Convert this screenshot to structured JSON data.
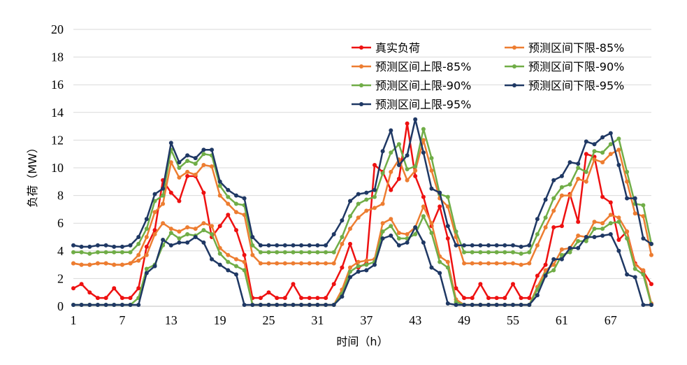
{
  "chart_data": {
    "type": "line",
    "xlabel": "时间（h）",
    "ylabel": "负荷（MW）",
    "ylim": [
      0,
      20
    ],
    "yticks": [
      0,
      2,
      4,
      6,
      8,
      10,
      12,
      14,
      16,
      18,
      20
    ],
    "x": [
      1,
      2,
      3,
      4,
      5,
      6,
      7,
      8,
      9,
      10,
      11,
      12,
      13,
      14,
      15,
      16,
      17,
      18,
      19,
      20,
      21,
      22,
      23,
      24,
      25,
      26,
      27,
      28,
      29,
      30,
      31,
      32,
      33,
      34,
      35,
      36,
      37,
      38,
      39,
      40,
      41,
      42,
      43,
      44,
      45,
      46,
      47,
      48,
      49,
      50,
      51,
      52,
      53,
      54,
      55,
      56,
      57,
      58,
      59,
      60,
      61,
      62,
      63,
      64,
      65,
      66,
      67,
      68,
      69,
      70,
      71,
      72
    ],
    "xticks": [
      1,
      7,
      13,
      19,
      25,
      31,
      37,
      43,
      49,
      55,
      61,
      67
    ],
    "grid": true,
    "legend_position": "top-right",
    "series": [
      {
        "name": "真实负荷",
        "color": "#ee1111",
        "values": [
          1.3,
          1.6,
          1.0,
          0.6,
          0.6,
          1.3,
          0.6,
          0.6,
          1.3,
          4.3,
          5.5,
          9.1,
          8.2,
          7.6,
          9.4,
          9.4,
          8.2,
          5.0,
          5.8,
          6.6,
          5.5,
          3.7,
          0.6,
          0.6,
          1.0,
          0.6,
          0.6,
          1.6,
          0.6,
          0.6,
          0.6,
          0.6,
          1.6,
          2.8,
          4.5,
          2.8,
          3.1,
          10.2,
          9.7,
          8.4,
          9.2,
          13.2,
          9.4,
          7.9,
          5.8,
          7.2,
          4.9,
          1.3,
          0.6,
          0.6,
          1.6,
          0.6,
          0.6,
          0.6,
          1.6,
          0.6,
          0.6,
          2.2,
          3.0,
          5.7,
          5.8,
          8.1,
          6.1,
          11.0,
          10.8,
          7.9,
          7.5,
          4.8,
          5.4,
          3.1,
          2.5,
          1.6
        ]
      },
      {
        "name": "预测区间下限-85%",
        "color": "#ed7d31",
        "values": [
          3.1,
          3.0,
          3.0,
          3.1,
          3.1,
          3.0,
          3.0,
          3.1,
          3.3,
          3.7,
          5.2,
          6.0,
          5.6,
          5.4,
          5.7,
          5.6,
          6.0,
          5.8,
          4.2,
          3.7,
          3.4,
          3.2,
          0.1,
          0.1,
          0.1,
          0.1,
          0.1,
          0.1,
          0.1,
          0.1,
          0.1,
          0.1,
          0.1,
          1.2,
          2.8,
          3.2,
          3.3,
          3.4,
          6.0,
          6.3,
          5.3,
          5.2,
          5.7,
          7.2,
          6.0,
          3.6,
          3.2,
          0.5,
          0.1,
          0.1,
          0.1,
          0.1,
          0.1,
          0.1,
          0.1,
          0.1,
          0.1,
          1.4,
          2.6,
          3.0,
          4.1,
          4.2,
          5.1,
          5.0,
          6.1,
          6.0,
          6.6,
          6.4,
          5.4,
          3.0,
          2.6,
          0.2
        ]
      },
      {
        "name": "预测区间上限-85%",
        "color": "#ed7d31",
        "values": [
          3.1,
          3.0,
          3.0,
          3.1,
          3.1,
          3.0,
          3.0,
          3.1,
          3.7,
          5.0,
          6.8,
          7.4,
          10.4,
          9.3,
          9.7,
          9.5,
          10.2,
          10.1,
          8.0,
          7.4,
          6.8,
          6.6,
          3.7,
          3.1,
          3.1,
          3.1,
          3.1,
          3.1,
          3.1,
          3.1,
          3.1,
          3.1,
          3.1,
          4.5,
          5.6,
          6.4,
          6.9,
          7.1,
          7.4,
          9.7,
          10.6,
          9.1,
          9.8,
          12.0,
          9.8,
          7.8,
          7.2,
          5.0,
          3.1,
          3.1,
          3.1,
          3.1,
          3.1,
          3.1,
          3.1,
          3.0,
          3.1,
          4.4,
          5.7,
          6.9,
          8.0,
          8.0,
          9.2,
          9.0,
          10.6,
          10.4,
          11.0,
          11.3,
          9.0,
          6.7,
          6.5,
          3.7
        ]
      },
      {
        "name": "预测区间下限-90%",
        "color": "#70ad47",
        "values": [
          0.1,
          0.1,
          0.1,
          0.1,
          0.1,
          0.1,
          0.1,
          0.1,
          0.6,
          2.7,
          3.0,
          4.4,
          5.3,
          4.9,
          5.2,
          5.1,
          5.5,
          5.2,
          3.8,
          3.2,
          2.9,
          2.6,
          0.1,
          0.1,
          0.1,
          0.1,
          0.1,
          0.1,
          0.1,
          0.1,
          0.1,
          0.1,
          0.1,
          0.9,
          2.5,
          2.9,
          3.0,
          3.2,
          5.4,
          5.8,
          4.9,
          4.9,
          5.2,
          6.5,
          5.3,
          3.2,
          2.8,
          0.3,
          0.1,
          0.1,
          0.1,
          0.1,
          0.1,
          0.1,
          0.1,
          0.1,
          0.1,
          1.2,
          2.3,
          2.6,
          3.7,
          3.9,
          4.7,
          4.7,
          5.6,
          5.6,
          6.0,
          6.1,
          4.9,
          2.7,
          2.3,
          0.1
        ]
      },
      {
        "name": "预测区间上限-90%",
        "color": "#70ad47",
        "values": [
          3.9,
          3.9,
          3.8,
          3.9,
          3.9,
          3.9,
          3.9,
          3.9,
          4.5,
          5.6,
          7.6,
          8.0,
          11.3,
          10.0,
          10.5,
          10.3,
          11.0,
          10.9,
          8.7,
          7.9,
          7.4,
          7.3,
          4.4,
          3.9,
          3.9,
          3.9,
          3.9,
          3.9,
          3.9,
          3.9,
          3.9,
          3.9,
          3.9,
          5.0,
          6.5,
          7.4,
          7.7,
          7.9,
          9.6,
          11.1,
          11.7,
          9.9,
          10.1,
          12.8,
          10.7,
          8.1,
          7.9,
          5.4,
          3.9,
          3.9,
          3.9,
          3.9,
          3.9,
          3.9,
          3.9,
          3.8,
          3.9,
          5.2,
          6.4,
          7.8,
          8.6,
          8.8,
          10.0,
          9.7,
          11.2,
          11.1,
          11.7,
          12.1,
          9.7,
          7.4,
          7.3,
          4.5
        ]
      },
      {
        "name": "预测区间下限-95%",
        "color": "#1f3864",
        "values": [
          0.1,
          0.1,
          0.1,
          0.1,
          0.1,
          0.1,
          0.1,
          0.1,
          0.1,
          2.4,
          2.9,
          4.8,
          4.4,
          4.6,
          4.6,
          5.0,
          4.6,
          3.4,
          3.0,
          2.6,
          2.3,
          0.1,
          0.1,
          0.1,
          0.1,
          0.1,
          0.1,
          0.1,
          0.1,
          0.1,
          0.1,
          0.1,
          0.1,
          0.7,
          2.1,
          2.5,
          2.6,
          3.0,
          4.9,
          5.1,
          4.4,
          4.6,
          5.7,
          4.6,
          2.8,
          2.4,
          0.2,
          0.1,
          0.1,
          0.1,
          0.1,
          0.1,
          0.1,
          0.1,
          0.1,
          0.1,
          0.1,
          0.8,
          2.2,
          3.4,
          3.4,
          4.2,
          4.2,
          5.0,
          5.0,
          5.1,
          5.2,
          4.0,
          2.3,
          2.1,
          0.1,
          0.1
        ]
      },
      {
        "name": "预测区间上限-95%",
        "color": "#1f3864",
        "values": [
          4.4,
          4.3,
          4.3,
          4.4,
          4.4,
          4.3,
          4.3,
          4.4,
          5.0,
          6.3,
          8.1,
          8.5,
          11.8,
          10.4,
          10.9,
          10.7,
          11.3,
          11.3,
          9.0,
          8.4,
          8.0,
          7.8,
          5.0,
          4.4,
          4.4,
          4.4,
          4.4,
          4.4,
          4.4,
          4.4,
          4.4,
          4.4,
          5.2,
          6.2,
          7.6,
          8.1,
          8.2,
          8.4,
          11.2,
          12.7,
          10.2,
          10.9,
          13.5,
          11.1,
          8.5,
          8.2,
          5.8,
          4.4,
          4.4,
          4.4,
          4.4,
          4.4,
          4.4,
          4.4,
          4.4,
          4.3,
          4.4,
          6.3,
          7.7,
          9.1,
          9.4,
          10.4,
          10.3,
          11.9,
          11.7,
          12.2,
          12.5,
          10.2,
          7.8,
          7.8,
          4.9,
          4.5
        ]
      }
    ]
  }
}
